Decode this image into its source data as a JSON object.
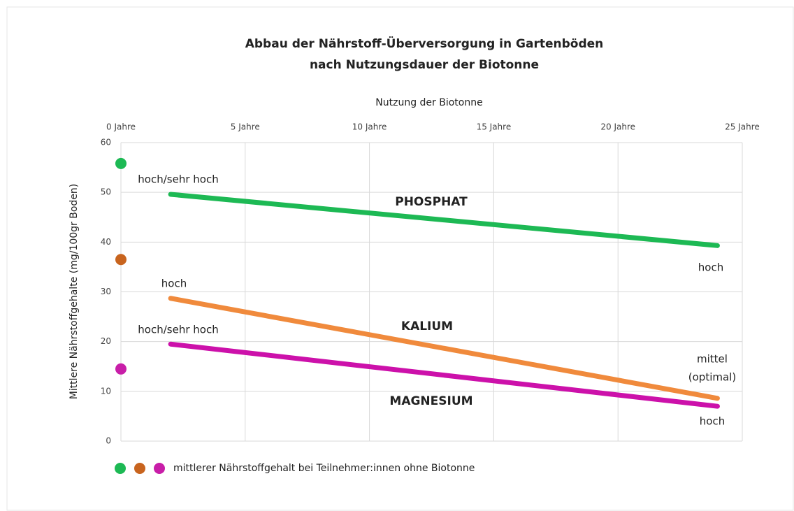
{
  "chart_data": {
    "type": "line",
    "title": [
      "Abbau der Nährstoff-Überversorgung in Gartenböden",
      "nach Nutzungsdauer der Biotonne"
    ],
    "x_label": "Nutzung der Biotonne",
    "y_label": "Mittlere Nährstoffgehalte (mg/100gr Boden)",
    "xlim": [
      0,
      25
    ],
    "xticks": [
      {
        "value": 0,
        "label": "0 Jahre"
      },
      {
        "value": 5,
        "label": "5 Jahre"
      },
      {
        "value": 10,
        "label": "10 Jahre"
      },
      {
        "value": 15,
        "label": "15 Jahre"
      },
      {
        "value": 20,
        "label": "20 Jahre"
      },
      {
        "value": 25,
        "label": "25 Jahre"
      }
    ],
    "ylim": [
      0,
      60
    ],
    "yticks": [
      0,
      10,
      20,
      30,
      40,
      50,
      60
    ],
    "grid": true,
    "series": [
      {
        "name": "PHOSPHAT",
        "color": "#1db954",
        "label_color": "#70ad47",
        "note_color": "#3f8a2a",
        "x": [
          2,
          24
        ],
        "values": [
          49.6,
          39.3
        ],
        "start_label": "hoch/sehr hoch",
        "end_label": [
          "hoch"
        ]
      },
      {
        "name": "KALIUM",
        "color": "#f08a3c",
        "label_color": "#d5621c",
        "note_color": "#e0701e",
        "x": [
          2,
          24
        ],
        "values": [
          28.7,
          8.6
        ],
        "start_label": "hoch",
        "end_label": [
          "mittel",
          "(optimal)"
        ]
      },
      {
        "name": "MAGNESIUM",
        "color": "#cc11aa",
        "label_color": "#cc11aa",
        "note_color": "#cc11aa",
        "x": [
          2,
          24
        ],
        "values": [
          19.5,
          7.0
        ],
        "start_label": "hoch/sehr hoch",
        "end_label": [
          "hoch"
        ]
      }
    ],
    "reference": {
      "label": "mittlerer Nährstoffgehalt bei Teilnehmer:innen ohne Biotonne",
      "x": 0,
      "values": [
        55.8,
        36.5,
        14.5
      ],
      "colors": [
        "#1db954",
        "#c8641e",
        "#c81ea8"
      ]
    }
  }
}
